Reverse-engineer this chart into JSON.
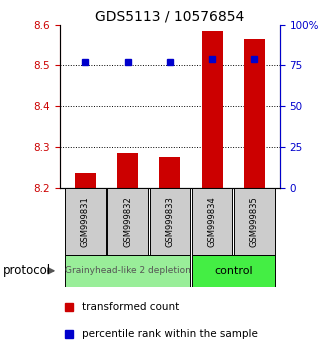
{
  "title": "GDS5113 / 10576854",
  "samples": [
    "GSM999831",
    "GSM999832",
    "GSM999833",
    "GSM999834",
    "GSM999835"
  ],
  "bar_values": [
    8.235,
    8.285,
    8.275,
    8.585,
    8.565
  ],
  "percentile_values": [
    77,
    77,
    77,
    79,
    79
  ],
  "bar_baseline": 8.2,
  "ylim_left": [
    8.2,
    8.6
  ],
  "ylim_right": [
    0,
    100
  ],
  "yticks_left": [
    8.2,
    8.3,
    8.4,
    8.5,
    8.6
  ],
  "yticks_right": [
    0,
    25,
    50,
    75,
    100
  ],
  "ytick_labels_right": [
    "0",
    "25",
    "50",
    "75",
    "100%"
  ],
  "bar_color": "#cc0000",
  "percentile_color": "#0000cc",
  "group1_label": "Grainyhead-like 2 depletion",
  "group2_label": "control",
  "group1_color": "#99ee99",
  "group2_color": "#44ee44",
  "protocol_label": "protocol",
  "legend_bar_label": "transformed count",
  "legend_pct_label": "percentile rank within the sample",
  "title_fontsize": 10,
  "tick_fontsize": 7.5
}
